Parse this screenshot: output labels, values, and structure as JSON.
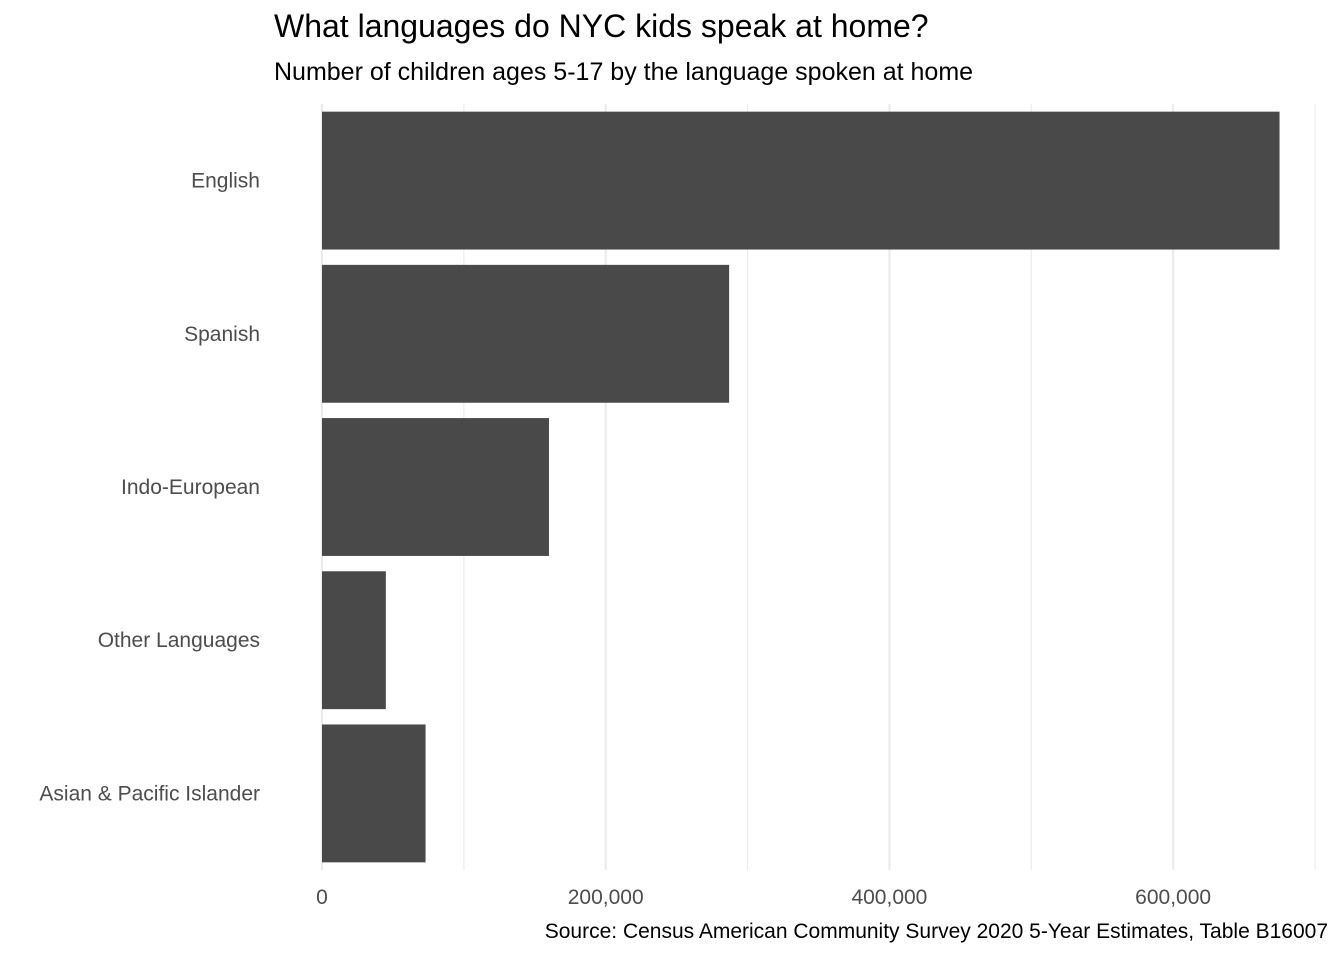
{
  "chart_data": {
    "type": "bar",
    "orientation": "horizontal",
    "title": "What languages do NYC kids speak at home?",
    "subtitle": "Number of children ages 5-17 by the language spoken at home",
    "caption": "Source: Census American Community Survey 2020 5-Year Estimates, Table B16007",
    "xlabel": "",
    "ylabel": "",
    "categories": [
      "English",
      "Spanish",
      "Indo-European",
      "Other Languages",
      "Asian & Pacific Islander"
    ],
    "values": [
      675000,
      287000,
      160000,
      45000,
      73000
    ],
    "xlim": [
      0,
      700000
    ],
    "x_ticks": [
      0,
      200000,
      400000,
      600000
    ],
    "x_tick_labels": [
      "0",
      "200,000",
      "400,000",
      "600,000"
    ],
    "grid": "vertical",
    "bar_color": "#494949",
    "grid_color": "#ebebeb"
  }
}
